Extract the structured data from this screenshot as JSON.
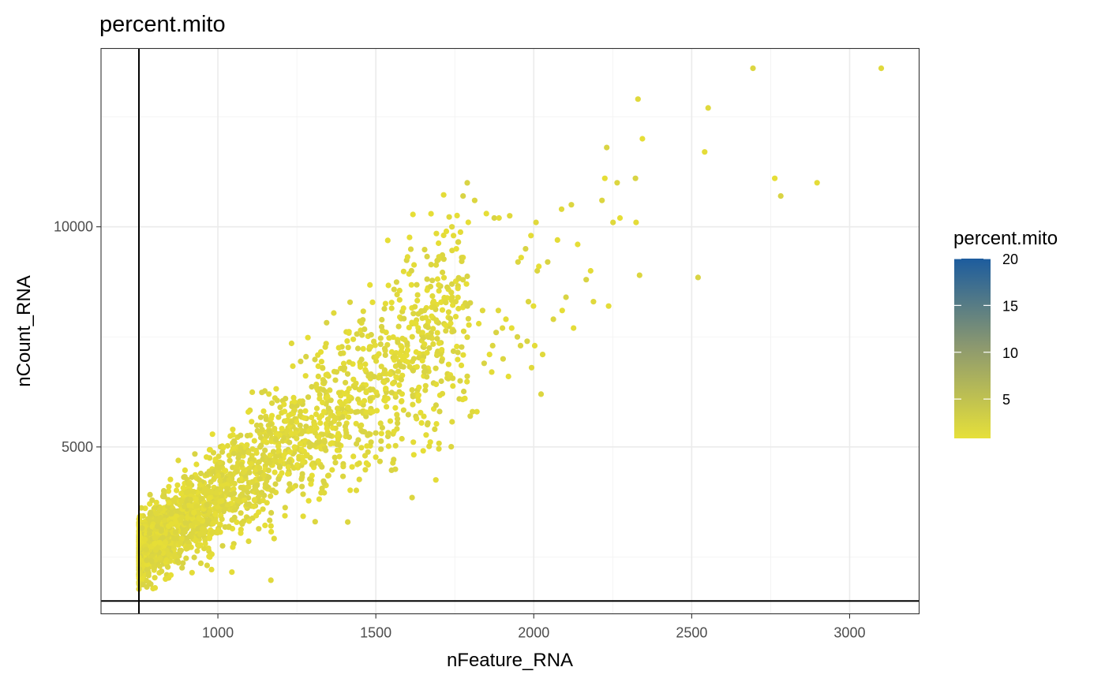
{
  "chart_data": {
    "type": "scatter",
    "title": "percent.mito",
    "xlabel": "nFeature_RNA",
    "ylabel": "nCount_RNA",
    "xlim": [
      630,
      3220
    ],
    "ylim": [
      1210,
      14050
    ],
    "x_ticks": [
      1000,
      1500,
      2000,
      2500,
      3000
    ],
    "y_ticks": [
      5000,
      10000
    ],
    "grid": true,
    "reference_lines": {
      "vertical_x": 750,
      "horizontal_y": 1500
    },
    "color_scale": {
      "name": "percent.mito",
      "low_color": "#e6e03a",
      "high_color": "#1c5c9e",
      "range": [
        0.8,
        20
      ],
      "breaks": [
        5,
        10,
        15,
        20
      ],
      "break_labels": [
        "5",
        "10",
        "15",
        "20"
      ],
      "legend_position": "right"
    },
    "point_color_percent_mito": 1.5,
    "point_color": "#e0d93c",
    "cluster_summary": {
      "n_points_estimated": 2600,
      "x_range": [
        750,
        1800
      ],
      "y_at_x_750": [
        2000,
        3200
      ],
      "y_at_x_1300": [
        4000,
        6200
      ],
      "y_at_x_1700": [
        6000,
        8300
      ]
    },
    "points": [
      [
        1746,
        9800
      ],
      [
        1741,
        10000
      ],
      [
        1813,
        10600
      ],
      [
        1850,
        10300
      ],
      [
        1875,
        10200
      ],
      [
        1890,
        10200
      ],
      [
        1924,
        10250
      ],
      [
        1950,
        9200
      ],
      [
        1960,
        9300
      ],
      [
        1974,
        9500
      ],
      [
        1991,
        9800
      ],
      [
        2007,
        10100
      ],
      [
        2011,
        9000
      ],
      [
        2016,
        9100
      ],
      [
        2044,
        9200
      ],
      [
        2075,
        9700
      ],
      [
        2088,
        10400
      ],
      [
        2119,
        10500
      ],
      [
        2139,
        9600
      ],
      [
        2166,
        8800
      ],
      [
        2180,
        9000
      ],
      [
        2189,
        8300
      ],
      [
        2216,
        10600
      ],
      [
        2225,
        11100
      ],
      [
        2231,
        11800
      ],
      [
        2237,
        8200
      ],
      [
        2251,
        10100
      ],
      [
        2264,
        11000
      ],
      [
        2273,
        10200
      ],
      [
        2322,
        11100
      ],
      [
        2324,
        10100
      ],
      [
        2330,
        12900
      ],
      [
        2335,
        8900
      ],
      [
        2344,
        12000
      ],
      [
        2520,
        8850
      ],
      [
        2541,
        11700
      ],
      [
        2552,
        12700
      ],
      [
        2694,
        13600
      ],
      [
        2763,
        11100
      ],
      [
        2782,
        10700
      ],
      [
        2897,
        11000
      ],
      [
        3100,
        13600
      ],
      [
        1983,
        8300
      ],
      [
        1999,
        8200
      ],
      [
        1979,
        7400
      ],
      [
        2003,
        7300
      ],
      [
        2028,
        7100
      ],
      [
        2062,
        7900
      ],
      [
        2090,
        8100
      ],
      [
        2102,
        8400
      ],
      [
        2126,
        7700
      ],
      [
        1993,
        6800
      ],
      [
        2023,
        6200
      ],
      [
        1930,
        7700
      ],
      [
        1948,
        7500
      ],
      [
        1912,
        7900
      ],
      [
        1888,
        8100
      ],
      [
        1870,
        7300
      ],
      [
        1860,
        7100
      ],
      [
        1843,
        6900
      ],
      [
        1820,
        5800
      ],
      [
        1806,
        5800
      ],
      [
        1799,
        5700
      ],
      [
        1782,
        6100
      ],
      [
        1767,
        6500
      ],
      [
        1760,
        8600
      ],
      [
        1753,
        8300
      ],
      [
        1772,
        9300
      ],
      [
        1755,
        9500
      ],
      [
        1790,
        8200
      ],
      [
        1826,
        7800
      ],
      [
        1838,
        8100
      ],
      [
        1903,
        7000
      ],
      [
        1920,
        6600
      ],
      [
        1881,
        7600
      ],
      [
        1867,
        6700
      ],
      [
        1901,
        7700
      ],
      [
        1958,
        7300
      ]
    ]
  }
}
